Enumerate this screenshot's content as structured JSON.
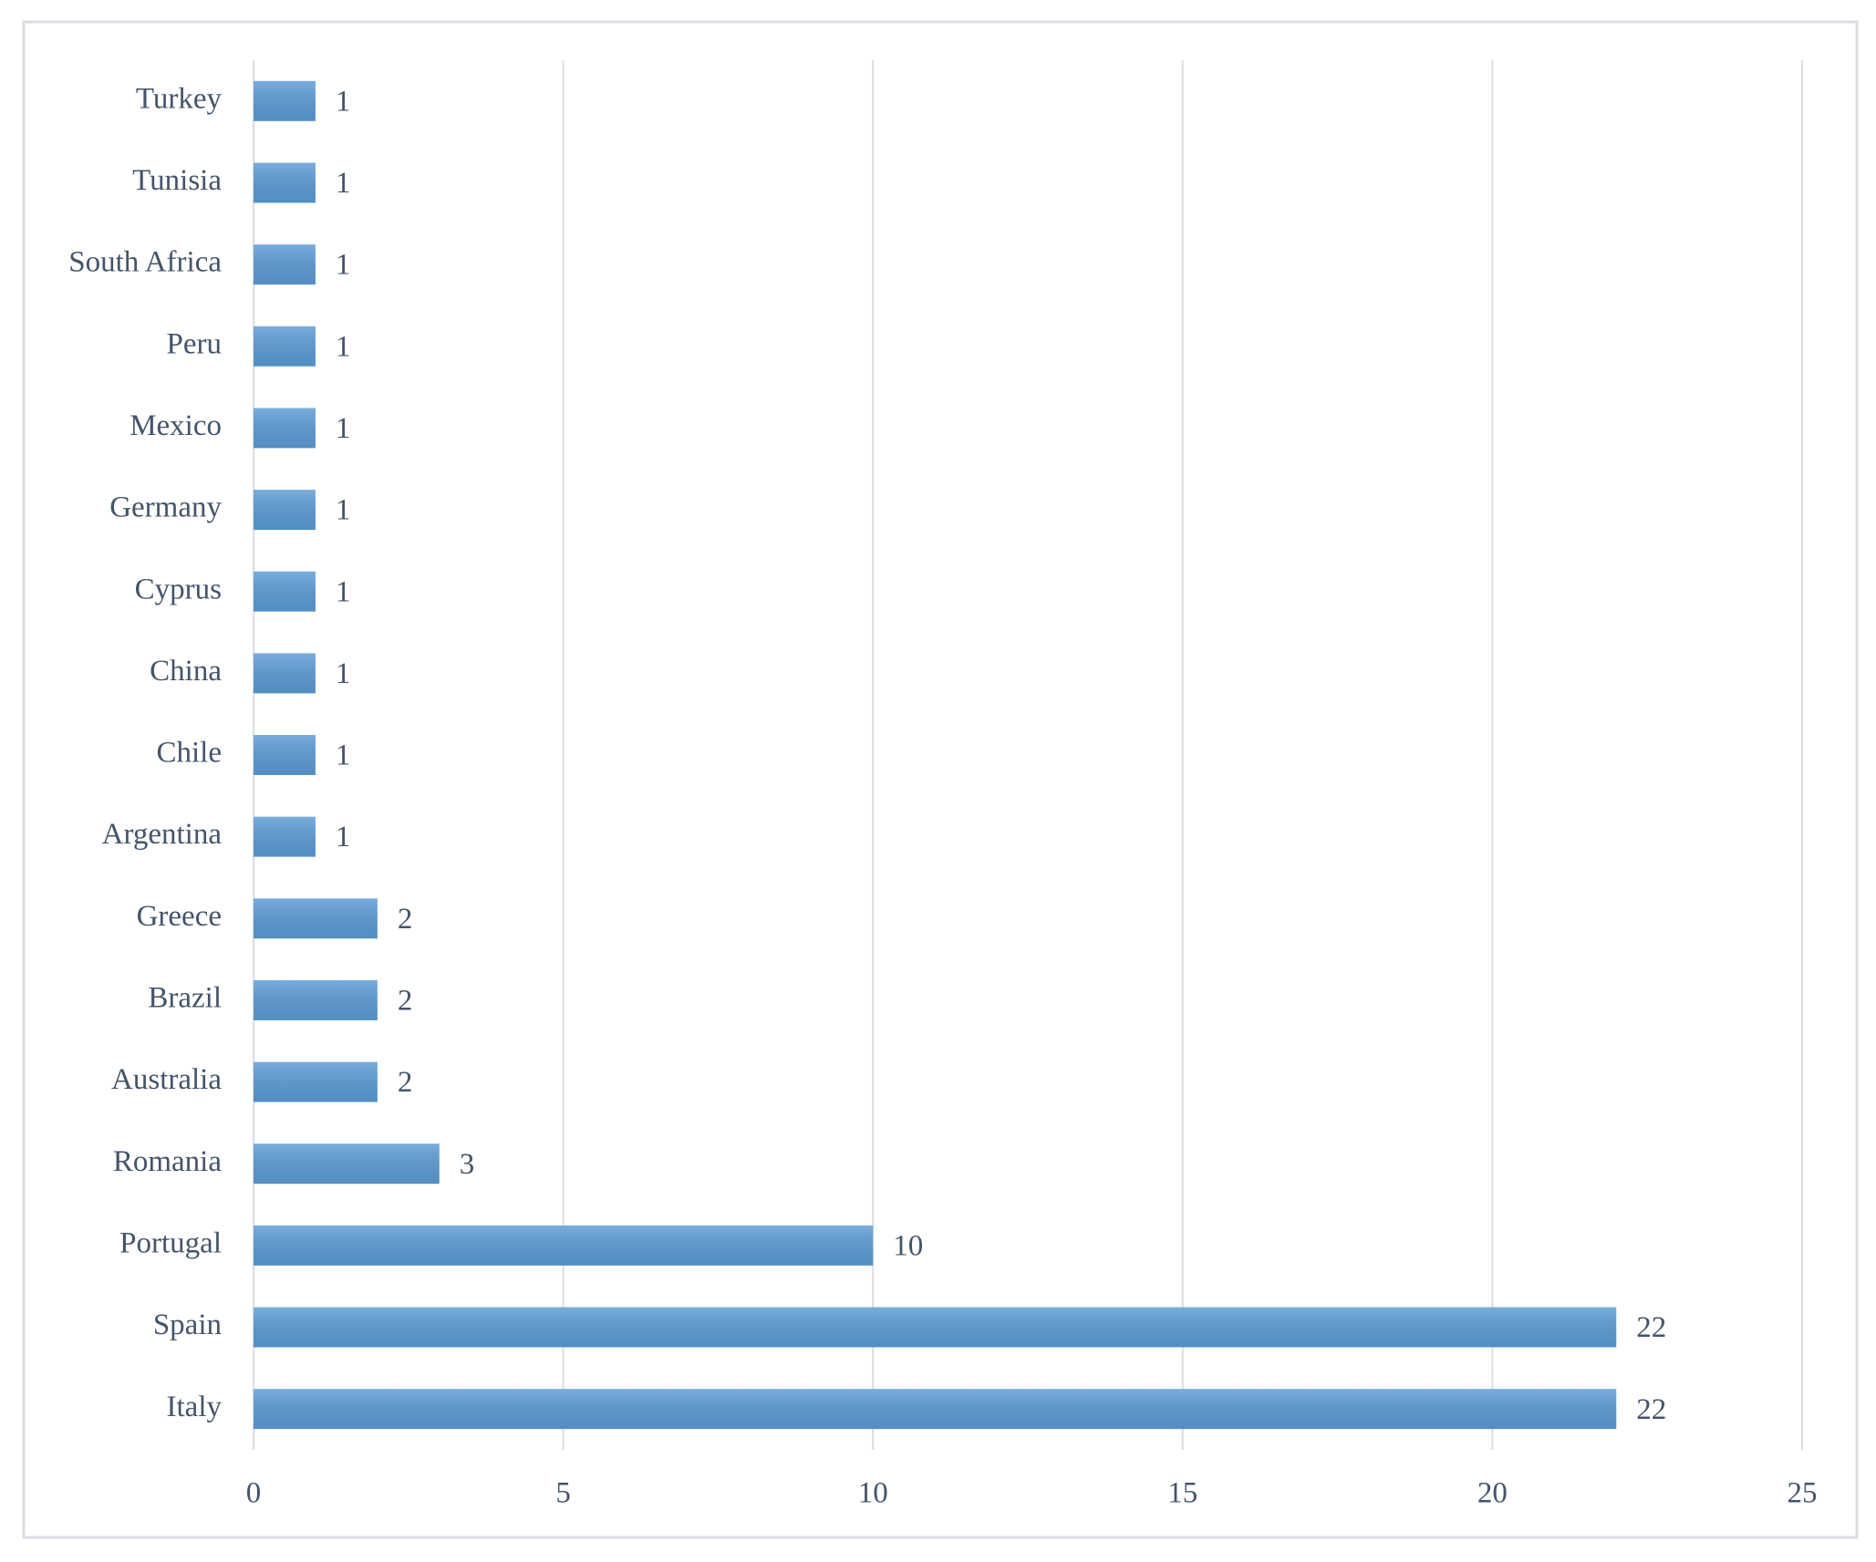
{
  "chart_data": {
    "type": "barh",
    "categories": [
      "Turkey",
      "Tunisia",
      "South Africa",
      "Peru",
      "Mexico",
      "Germany",
      "Cyprus",
      "China",
      "Chile",
      "Argentina",
      "Greece",
      "Brazil",
      "Australia",
      "Romania",
      "Portugal",
      "Spain",
      "Italy"
    ],
    "values": [
      1,
      1,
      1,
      1,
      1,
      1,
      1,
      1,
      1,
      1,
      2,
      2,
      2,
      3,
      10,
      22,
      22
    ],
    "color": "#5b9bd5",
    "xlim": [
      0,
      25
    ],
    "xticks": [
      0,
      5,
      10,
      15,
      20,
      25
    ],
    "grid": true,
    "data_labels": true
  }
}
